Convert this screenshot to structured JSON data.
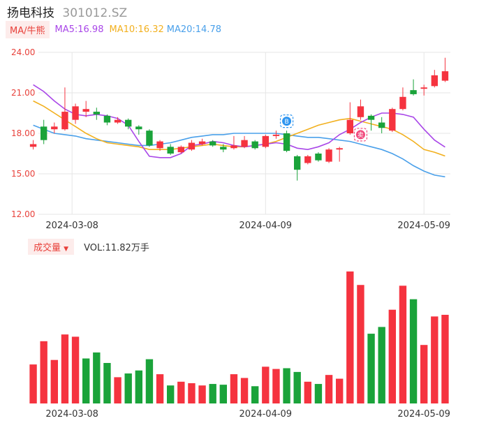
{
  "header": {
    "name": "扬电科技",
    "code": "301012.SZ"
  },
  "ma_legend": {
    "button": "MA/牛熊",
    "ma5": "MA5:16.98",
    "ma10": "MA10:16.32",
    "ma20": "MA20:14.78"
  },
  "volume_legend": {
    "button": "成交量",
    "arrow": "▼",
    "value": "VOL:11.82万手"
  },
  "markers": {
    "b": "B",
    "s": "卖"
  },
  "colors": {
    "up": "#f5333f",
    "down": "#1aa33a",
    "ma5": "#a947e8",
    "ma10": "#f2b01e",
    "ma20": "#4aa0ea",
    "grid": "#e6e6e6",
    "axis_label": "#e8403a"
  },
  "chart_data": [
    {
      "type": "candlestick",
      "title": "",
      "y_ticks": [
        "24.00",
        "21.00",
        "18.00",
        "15.00",
        "12.00"
      ],
      "ylim": [
        12,
        24
      ],
      "x_ticks": [
        {
          "label": "2024-03-08",
          "index": 5
        },
        {
          "label": "2024-04-09",
          "index": 22
        },
        {
          "label": "2024-05-09",
          "index": 37
        }
      ],
      "candles": [
        {
          "o": 17.0,
          "c": 17.2,
          "h": 17.5,
          "l": 16.8
        },
        {
          "o": 18.5,
          "c": 17.5,
          "h": 19.0,
          "l": 17.2
        },
        {
          "o": 18.3,
          "c": 18.5,
          "h": 18.8,
          "l": 18.0
        },
        {
          "o": 18.3,
          "c": 19.6,
          "h": 21.4,
          "l": 18.2
        },
        {
          "o": 19.0,
          "c": 20.0,
          "h": 20.2,
          "l": 18.7
        },
        {
          "o": 19.6,
          "c": 19.8,
          "h": 20.4,
          "l": 19.2
        },
        {
          "o": 19.6,
          "c": 19.4,
          "h": 19.9,
          "l": 19.0
        },
        {
          "o": 19.3,
          "c": 18.8,
          "h": 19.4,
          "l": 18.6
        },
        {
          "o": 18.8,
          "c": 19.0,
          "h": 19.2,
          "l": 18.7
        },
        {
          "o": 19.0,
          "c": 18.5,
          "h": 19.1,
          "l": 18.3
        },
        {
          "o": 18.5,
          "c": 18.3,
          "h": 18.6,
          "l": 17.9
        },
        {
          "o": 18.2,
          "c": 17.1,
          "h": 18.3,
          "l": 17.0
        },
        {
          "o": 16.9,
          "c": 17.4,
          "h": 17.5,
          "l": 16.7
        },
        {
          "o": 17.0,
          "c": 16.5,
          "h": 17.2,
          "l": 16.4
        },
        {
          "o": 16.6,
          "c": 17.0,
          "h": 17.1,
          "l": 16.5
        },
        {
          "o": 16.8,
          "c": 17.3,
          "h": 17.5,
          "l": 16.7
        },
        {
          "o": 17.2,
          "c": 17.4,
          "h": 17.6,
          "l": 17.1
        },
        {
          "o": 17.4,
          "c": 17.1,
          "h": 17.5,
          "l": 17.0
        },
        {
          "o": 17.0,
          "c": 16.8,
          "h": 17.2,
          "l": 16.6
        },
        {
          "o": 16.9,
          "c": 17.1,
          "h": 17.8,
          "l": 16.8
        },
        {
          "o": 17.0,
          "c": 17.5,
          "h": 17.8,
          "l": 16.9
        },
        {
          "o": 17.4,
          "c": 16.9,
          "h": 17.5,
          "l": 16.8
        },
        {
          "o": 17.0,
          "c": 17.8,
          "h": 17.9,
          "l": 16.9
        },
        {
          "o": 17.8,
          "c": 17.9,
          "h": 18.2,
          "l": 17.6
        },
        {
          "o": 18.0,
          "c": 16.7,
          "h": 18.2,
          "l": 16.6
        },
        {
          "o": 16.3,
          "c": 15.3,
          "h": 16.4,
          "l": 14.5
        },
        {
          "o": 15.8,
          "c": 16.3,
          "h": 16.4,
          "l": 15.7
        },
        {
          "o": 16.5,
          "c": 16.0,
          "h": 16.6,
          "l": 15.9
        },
        {
          "o": 15.9,
          "c": 16.8,
          "h": 16.9,
          "l": 15.8
        },
        {
          "o": 16.8,
          "c": 16.9,
          "h": 17.0,
          "l": 15.9
        },
        {
          "o": 18.0,
          "c": 19.0,
          "h": 20.3,
          "l": 17.9
        },
        {
          "o": 19.2,
          "c": 20.0,
          "h": 20.5,
          "l": 19.0
        },
        {
          "o": 19.3,
          "c": 19.0,
          "h": 19.4,
          "l": 18.2
        },
        {
          "o": 18.8,
          "c": 18.4,
          "h": 19.2,
          "l": 18.0
        },
        {
          "o": 18.2,
          "c": 19.8,
          "h": 19.9,
          "l": 18.1
        },
        {
          "o": 19.8,
          "c": 20.7,
          "h": 21.4,
          "l": 19.7
        },
        {
          "o": 21.2,
          "c": 20.9,
          "h": 22.0,
          "l": 20.8
        },
        {
          "o": 21.3,
          "c": 21.4,
          "h": 21.6,
          "l": 20.8
        },
        {
          "o": 21.5,
          "c": 22.3,
          "h": 22.7,
          "l": 21.4
        },
        {
          "o": 21.9,
          "c": 22.6,
          "h": 23.6,
          "l": 21.8
        }
      ],
      "ma5": [
        21.6,
        21.1,
        20.4,
        19.8,
        19.4,
        19.3,
        19.4,
        19.3,
        19.1,
        18.6,
        17.4,
        16.3,
        16.2,
        16.2,
        16.5,
        17.1,
        17.2,
        17.4,
        17.3,
        17.1,
        17.0,
        17.1,
        17.2,
        17.3,
        17.2,
        16.9,
        16.8,
        17.0,
        17.3,
        17.9,
        18.3,
        18.8,
        19.2,
        19.5,
        19.5,
        19.4,
        19.2,
        18.3,
        17.5,
        16.98
      ],
      "ma10": [
        20.4,
        20.0,
        19.5,
        19.0,
        18.5,
        18.0,
        17.6,
        17.3,
        17.2,
        17.1,
        17.0,
        16.8,
        16.8,
        16.8,
        16.9,
        17.0,
        17.1,
        17.2,
        17.1,
        17.0,
        17.0,
        17.1,
        17.2,
        17.4,
        17.7,
        18.0,
        18.3,
        18.6,
        18.8,
        19.0,
        19.1,
        18.9,
        18.7,
        18.5,
        18.3,
        17.9,
        17.4,
        16.8,
        16.6,
        16.32
      ],
      "ma20": [
        18.6,
        18.3,
        18.0,
        17.9,
        17.8,
        17.6,
        17.5,
        17.4,
        17.3,
        17.2,
        17.1,
        17.1,
        17.2,
        17.3,
        17.5,
        17.7,
        17.8,
        17.9,
        17.9,
        18.0,
        18.0,
        18.0,
        18.0,
        18.0,
        17.9,
        17.8,
        17.7,
        17.7,
        17.6,
        17.5,
        17.4,
        17.2,
        17.0,
        16.8,
        16.5,
        16.1,
        15.6,
        15.2,
        14.9,
        14.78
      ]
    },
    {
      "type": "bar",
      "title": "",
      "series": [
        {
          "values": [
            5.2,
            8.3,
            5.8,
            9.2,
            8.9,
            6.0,
            6.8,
            5.4,
            3.5,
            4.0,
            4.4,
            5.9,
            3.9,
            2.4,
            2.9,
            2.7,
            2.4,
            2.6,
            2.5,
            3.9,
            3.4,
            2.3,
            4.9,
            4.6,
            4.7,
            4.2,
            2.9,
            2.6,
            3.8,
            3.3,
            17.6,
            15.8,
            9.3,
            10.2,
            12.5,
            15.7,
            13.9,
            7.8,
            11.6,
            11.82
          ]
        }
      ],
      "directions": [
        "u",
        "u",
        "u",
        "u",
        "u",
        "d",
        "d",
        "d",
        "u",
        "d",
        "d",
        "d",
        "u",
        "d",
        "u",
        "u",
        "u",
        "d",
        "d",
        "u",
        "u",
        "d",
        "u",
        "u",
        "d",
        "d",
        "u",
        "d",
        "u",
        "u",
        "u",
        "u",
        "d",
        "d",
        "u",
        "u",
        "d",
        "u",
        "u",
        "u"
      ]
    }
  ]
}
